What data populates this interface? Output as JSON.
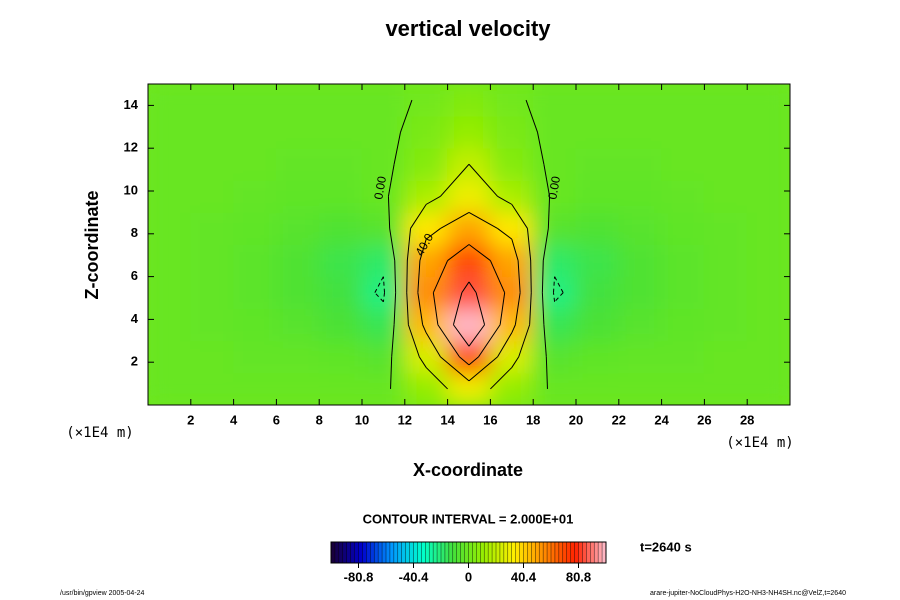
{
  "chart_data": {
    "type": "contour",
    "title": "vertical velocity",
    "x_label": "X-coordinate",
    "y_label": "Z-coordinate",
    "x_unit": "(×1E4 m)",
    "y_unit": "(×1E4 m)",
    "xlim": [
      0,
      30
    ],
    "ylim": [
      0,
      15
    ],
    "xticks": [
      2,
      4,
      6,
      8,
      10,
      12,
      14,
      16,
      18,
      20,
      22,
      24,
      26,
      28
    ],
    "yticks": [
      2,
      4,
      6,
      8,
      10,
      12,
      14
    ],
    "x": [
      1,
      3,
      5,
      7,
      9,
      11,
      13,
      15,
      17,
      19,
      21,
      23,
      25,
      27,
      29
    ],
    "y": [
      0.75,
      2.25,
      3.75,
      5.25,
      6.75,
      8.25,
      9.75,
      11.25,
      12.75,
      14.25
    ],
    "z": [
      [
        -2,
        -2,
        -2,
        -2,
        -2,
        -2,
        10,
        30,
        10,
        -2,
        -2,
        -2,
        -2,
        -2,
        -2
      ],
      [
        -2,
        -2,
        -3,
        -3,
        -4,
        -6,
        25,
        70,
        25,
        -6,
        -4,
        -3,
        -3,
        -2,
        -2
      ],
      [
        -2,
        -3,
        -4,
        -6,
        -9,
        -15,
        45,
        100,
        45,
        -15,
        -9,
        -6,
        -4,
        -3,
        -2
      ],
      [
        -2,
        -3,
        -5,
        -8,
        -12,
        -22,
        55,
        85,
        55,
        -22,
        -12,
        -8,
        -5,
        -3,
        -2
      ],
      [
        -2,
        -3,
        -5,
        -8,
        -14,
        -18,
        50,
        70,
        50,
        -18,
        -14,
        -8,
        -5,
        -3,
        -2
      ],
      [
        -2,
        -3,
        -4,
        -6,
        -8,
        -6,
        35,
        50,
        35,
        -6,
        -8,
        -6,
        -4,
        -3,
        -2
      ],
      [
        -2,
        -2,
        -3,
        -4,
        -4,
        -2,
        15,
        30,
        15,
        -2,
        -4,
        -4,
        -3,
        -2,
        -2
      ],
      [
        -2,
        -2,
        -2,
        -3,
        -3,
        -2,
        6,
        20,
        6,
        -2,
        -3,
        -3,
        -2,
        -2,
        -2
      ],
      [
        -2,
        -2,
        -2,
        -2,
        -2,
        -2,
        3,
        10,
        3,
        -2,
        -2,
        -2,
        -2,
        -2,
        -2
      ],
      [
        -2,
        -2,
        -2,
        -2,
        -2,
        -2,
        1,
        5,
        1,
        -2,
        -2,
        -2,
        -2,
        -2,
        -2
      ]
    ],
    "contour_levels": [
      -20,
      0,
      20,
      40,
      60,
      80
    ],
    "contour_labels": [
      "0.00",
      "40.0",
      "0.00"
    ],
    "contour_interval_text": "CONTOUR INTERVAL = 2.000E+01",
    "time_text": "t=2640 s",
    "clim": [
      -101,
      101
    ],
    "colorbar_ticks": [
      -80.8,
      -40.4,
      0,
      40.4,
      80.8
    ],
    "colormap": [
      "#1a0033",
      "#0000cc",
      "#0099ff",
      "#00ffcc",
      "#44e03a",
      "#99ee00",
      "#ffee00",
      "#ff8800",
      "#ff2200",
      "#ffc0d0"
    ],
    "footer_left": "/usr/bin/gpview 2005-04-24",
    "footer_right": "arare-jupiter-NoCloudPhys-H2O-NH3-NH4SH.nc@VelZ,t=2640"
  }
}
